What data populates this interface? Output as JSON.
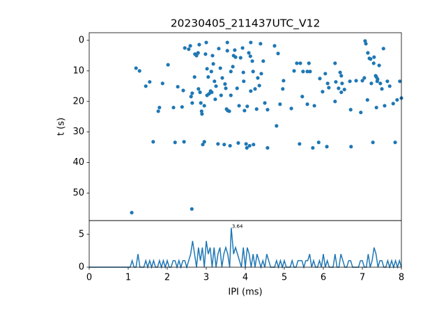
{
  "chart_data": [
    {
      "type": "scatter",
      "title": "20230405_211437UTC_V12",
      "ylabel": "t (s)",
      "color": "#1f77b4",
      "xlim": [
        0,
        8
      ],
      "ylim": [
        59,
        -2.5
      ],
      "yticks": [
        0,
        10,
        20,
        30,
        40,
        50
      ],
      "x": [
        1.09,
        2.63,
        1.2,
        1.29,
        1.45,
        1.55,
        1.64,
        1.77,
        1.8,
        1.88,
        2.02,
        2.16,
        2.2,
        2.27,
        2.38,
        2.43,
        2.45,
        2.41,
        2.55,
        2.59,
        2.61,
        2.64,
        2.64,
        2.7,
        2.71,
        2.75,
        2.79,
        2.8,
        2.82,
        2.84,
        2.86,
        2.88,
        2.89,
        2.91,
        2.95,
        2.95,
        2.98,
        3.0,
        3.02,
        3.02,
        3.05,
        3.07,
        3.11,
        3.13,
        3.14,
        3.16,
        3.18,
        3.21,
        3.23,
        3.25,
        3.3,
        3.32,
        3.36,
        3.38,
        3.41,
        3.46,
        3.48,
        3.5,
        3.52,
        3.54,
        3.54,
        3.55,
        3.59,
        3.61,
        3.63,
        3.63,
        3.68,
        3.7,
        3.73,
        3.75,
        3.79,
        3.82,
        3.84,
        3.88,
        3.93,
        3.95,
        3.96,
        3.98,
        4.02,
        4.04,
        4.05,
        4.09,
        4.11,
        4.13,
        4.14,
        4.14,
        4.18,
        4.2,
        4.21,
        4.25,
        4.29,
        4.32,
        4.36,
        4.39,
        4.41,
        4.46,
        4.5,
        4.57,
        4.57,
        4.75,
        4.8,
        4.84,
        4.89,
        4.96,
        4.98,
        5.18,
        5.25,
        5.32,
        5.39,
        5.41,
        5.46,
        5.48,
        5.59,
        5.59,
        5.63,
        5.66,
        5.73,
        5.77,
        5.88,
        5.91,
        5.98,
        6.05,
        6.09,
        6.11,
        6.14,
        6.3,
        6.3,
        6.32,
        6.39,
        6.43,
        6.46,
        6.46,
        6.48,
        6.54,
        6.68,
        6.7,
        6.71,
        6.84,
        6.96,
        7.0,
        7.05,
        7.07,
        7.09,
        7.13,
        7.14,
        7.18,
        7.21,
        7.23,
        7.27,
        7.29,
        7.3,
        7.34,
        7.36,
        7.38,
        7.36,
        7.39,
        7.43,
        7.46,
        7.5,
        7.54,
        7.57,
        7.64,
        7.7,
        7.79,
        7.84,
        7.89,
        7.96,
        8.0
      ],
      "values": [
        56.4,
        55.2,
        9.1,
        10,
        15,
        13.6,
        33.2,
        23.2,
        22,
        14.1,
        8,
        22,
        33.4,
        15.2,
        21.8,
        33.2,
        2.5,
        16.4,
        2.9,
        1.8,
        18.4,
        20.5,
        17.3,
        12,
        4.5,
        5,
        4.1,
        15.9,
        1.4,
        17,
        20.5,
        23.2,
        24.1,
        34.1,
        33.2,
        21.4,
        4.5,
        0.7,
        9.3,
        18,
        12,
        17.5,
        16.6,
        10.2,
        17,
        5,
        7.7,
        13.4,
        19.3,
        15,
        33.9,
        2.7,
        9.1,
        18,
        12.3,
        34.1,
        14.3,
        15.7,
        22.5,
        0.7,
        3.4,
        23,
        23.2,
        34.5,
        10.2,
        18,
        8.6,
        5,
        3.2,
        5.5,
        15.7,
        33.6,
        21.4,
        5.7,
        2.5,
        10.5,
        13.4,
        23,
        33.9,
        35.2,
        21.6,
        4.1,
        34.5,
        5.2,
        0.7,
        16.6,
        6.8,
        10.2,
        34.1,
        15.9,
        22.5,
        12.3,
        14.8,
        1.1,
        10.9,
        6.8,
        20.5,
        35.2,
        22.7,
        1.8,
        28,
        4.3,
        20.9,
        15.9,
        13.2,
        22.3,
        10,
        7.5,
        33.9,
        7.5,
        18.4,
        10.2,
        10.2,
        20.9,
        7.5,
        10.2,
        35.2,
        21.4,
        33.4,
        12.5,
        16.8,
        10.9,
        34.8,
        14.1,
        15.5,
        7.5,
        20,
        13.6,
        15.7,
        10.5,
        11.6,
        17,
        14.1,
        16.1,
        13.4,
        22.7,
        34.8,
        13.2,
        23.6,
        13.2,
        12.3,
        0.2,
        1.1,
        19.5,
        4.1,
        5.9,
        6.1,
        14.1,
        33.4,
        7.5,
        5.5,
        11.6,
        12,
        13.4,
        22,
        12.7,
        8.2,
        14.1,
        15.9,
        2.7,
        21.4,
        13.4,
        15,
        20.7,
        33.4,
        19.5,
        13.4,
        18.9
      ]
    },
    {
      "type": "line",
      "xlabel": "IPI (ms)",
      "color": "#1f77b4",
      "xlim": [
        0,
        8
      ],
      "xticks": [
        0,
        1,
        2,
        3,
        4,
        5,
        6,
        7,
        8
      ],
      "ylim": [
        0,
        7.1
      ],
      "yticks": [
        0,
        5
      ],
      "annotations": [
        {
          "text": "3.64",
          "x": 3.64,
          "y": 6
        }
      ],
      "x": [
        0,
        1.0,
        1.05,
        1.1,
        1.15,
        1.2,
        1.25,
        1.3,
        1.35,
        1.4,
        1.45,
        1.5,
        1.55,
        1.6,
        1.65,
        1.7,
        1.75,
        1.8,
        1.85,
        1.9,
        1.95,
        2.0,
        2.05,
        2.1,
        2.15,
        2.2,
        2.25,
        2.3,
        2.35,
        2.4,
        2.45,
        2.5,
        2.55,
        2.6,
        2.65,
        2.7,
        2.75,
        2.8,
        2.85,
        2.9,
        2.95,
        3.0,
        3.05,
        3.1,
        3.15,
        3.2,
        3.25,
        3.3,
        3.35,
        3.4,
        3.45,
        3.5,
        3.55,
        3.6,
        3.64,
        3.7,
        3.75,
        3.8,
        3.85,
        3.9,
        3.95,
        4.0,
        4.05,
        4.1,
        4.15,
        4.2,
        4.25,
        4.3,
        4.35,
        4.4,
        4.45,
        4.5,
        4.55,
        4.6,
        4.65,
        4.7,
        4.75,
        4.8,
        4.85,
        4.9,
        4.95,
        5.0,
        5.05,
        5.1,
        5.15,
        5.2,
        5.25,
        5.3,
        5.35,
        5.4,
        5.45,
        5.5,
        5.55,
        5.6,
        5.65,
        5.7,
        5.75,
        5.8,
        5.85,
        5.9,
        5.95,
        6.0,
        6.05,
        6.1,
        6.15,
        6.2,
        6.25,
        6.3,
        6.35,
        6.4,
        6.45,
        6.5,
        6.55,
        6.6,
        6.65,
        6.7,
        6.75,
        6.8,
        6.85,
        6.9,
        6.95,
        7.0,
        7.05,
        7.1,
        7.15,
        7.2,
        7.25,
        7.3,
        7.35,
        7.4,
        7.45,
        7.5,
        7.55,
        7.6,
        7.65,
        7.7,
        7.75,
        7.8,
        7.85,
        7.9,
        7.95,
        8.0
      ],
      "values": [
        0,
        0,
        0,
        1,
        0,
        0,
        2,
        0,
        0,
        0,
        1,
        0,
        1,
        0,
        1,
        0,
        0,
        1,
        0,
        1,
        0,
        1,
        0,
        0,
        1,
        1,
        0,
        1,
        0,
        1,
        1,
        0,
        1,
        2,
        4,
        2,
        0,
        3,
        1,
        3,
        0,
        4,
        2,
        3,
        0,
        3,
        0,
        2,
        3,
        0,
        2,
        3,
        2,
        0,
        6,
        2,
        3,
        2,
        1,
        0,
        3,
        0,
        3,
        2,
        0,
        2,
        0,
        2,
        1,
        0,
        1,
        0,
        2,
        1,
        0,
        0,
        0,
        1,
        0,
        1,
        0,
        1,
        0,
        0,
        0,
        1,
        0,
        0,
        1,
        1,
        1,
        0,
        1,
        1,
        2,
        0,
        1,
        0,
        0,
        1,
        0,
        2,
        0,
        1,
        0,
        0,
        0,
        2,
        0,
        0,
        2,
        1,
        0,
        0,
        1,
        1,
        0,
        0,
        0,
        0,
        1,
        1,
        0,
        0,
        2,
        0,
        1,
        3,
        2,
        0,
        1,
        1,
        0,
        0,
        1,
        0,
        1,
        0,
        1,
        0,
        1,
        0
      ]
    }
  ]
}
